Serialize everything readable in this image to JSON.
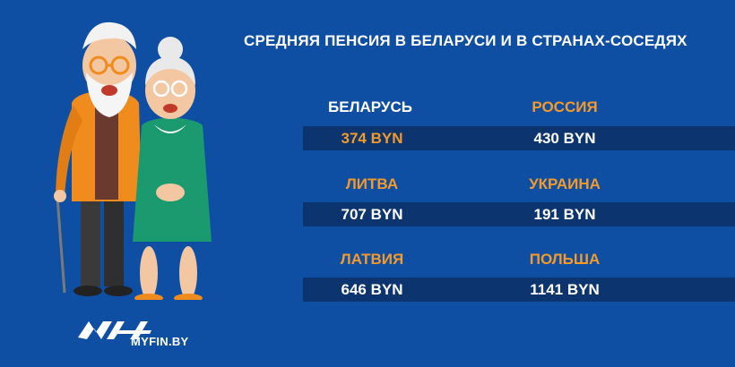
{
  "title": "СРЕДНЯЯ ПЕНСИЯ В БЕЛАРУСИ И В СТРАНАХ-СОСЕДЯХ",
  "rows": [
    {
      "left": {
        "country": "БЕЛАРУСЬ",
        "value": "374 BYN"
      },
      "right": {
        "country": "РОССИЯ",
        "value": "430 BYN"
      }
    },
    {
      "left": {
        "country": "ЛИТВА",
        "value": "707 BYN"
      },
      "right": {
        "country": "УКРАИНА",
        "value": "191 BYN"
      }
    },
    {
      "left": {
        "country": "ЛАТВИЯ",
        "value": "646 BYN"
      },
      "right": {
        "country": "ПОЛЬША",
        "value": "1141 BYN"
      }
    }
  ],
  "logo": {
    "text": "MYFIN.BY"
  },
  "colors": {
    "background": "#0f4fa3",
    "band": "#0c356f",
    "accent": "#f39a2b",
    "text": "#ffffff"
  },
  "illustration": "elderly-couple"
}
